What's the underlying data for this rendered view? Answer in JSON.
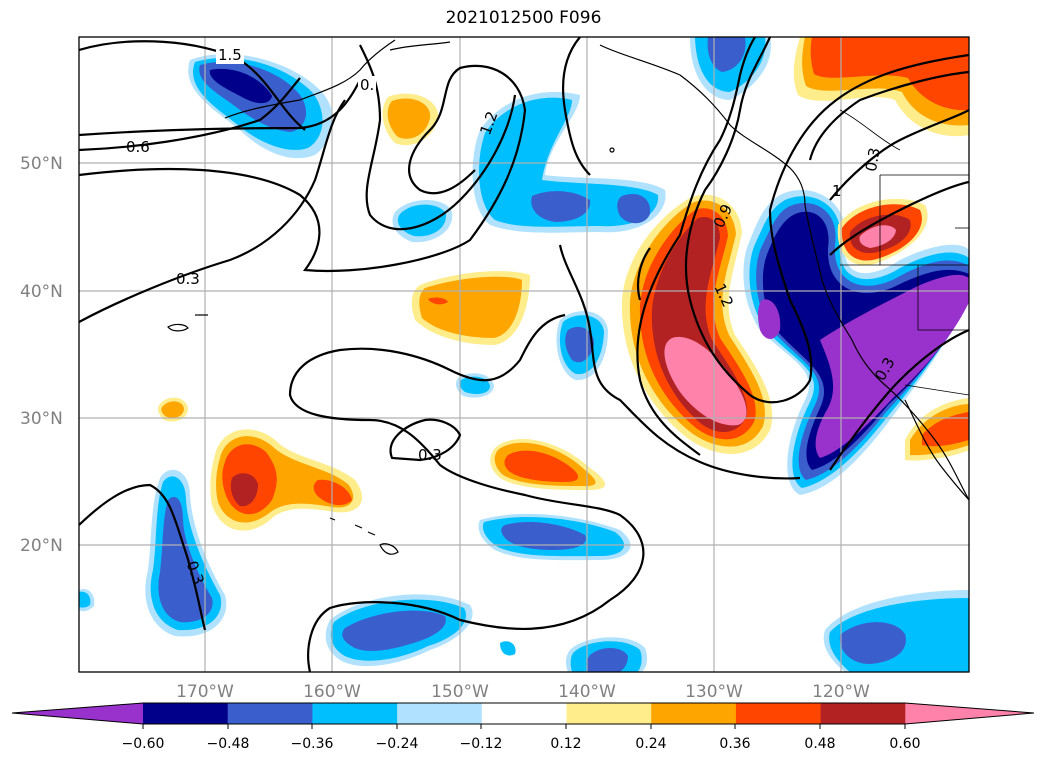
{
  "map": {
    "title": "2021012500 F096",
    "lat_labels": [
      "50°N",
      "40°N",
      "30°N",
      "20°N"
    ],
    "lon_labels": [
      "170°W",
      "160°W",
      "150°W",
      "140°W",
      "130°W",
      "120°W"
    ],
    "contour_labels": [
      "1.5",
      "0.",
      "1.2",
      "0.6",
      "0.9",
      "1.2",
      "0.3",
      "1",
      "0.3",
      "0.3",
      "0.3",
      "0.3"
    ],
    "colorbar": {
      "ticks": [
        "−0.60",
        "−0.48",
        "−0.36",
        "−0.24",
        "−0.12",
        "0.12",
        "0.24",
        "0.36",
        "0.48",
        "0.60"
      ],
      "colors": [
        "#9932CC",
        "#00008B",
        "#3A5FCD",
        "#00BFFF",
        "#B0E2FF",
        "#FFFFFF",
        "#FFEC8B",
        "#FFA500",
        "#FF4500",
        "#B22222",
        "#FF82AB"
      ]
    },
    "colors": {
      "purple": "#9932CC",
      "navy": "#00008B",
      "royal": "#3A5FCD",
      "sky": "#00BFFF",
      "pale_blue": "#B0E2FF",
      "pale_yellow": "#FFEC8B",
      "orange": "#FFA500",
      "red_orange": "#FF4500",
      "firebrick": "#B22222",
      "pink": "#FF82AB"
    }
  }
}
